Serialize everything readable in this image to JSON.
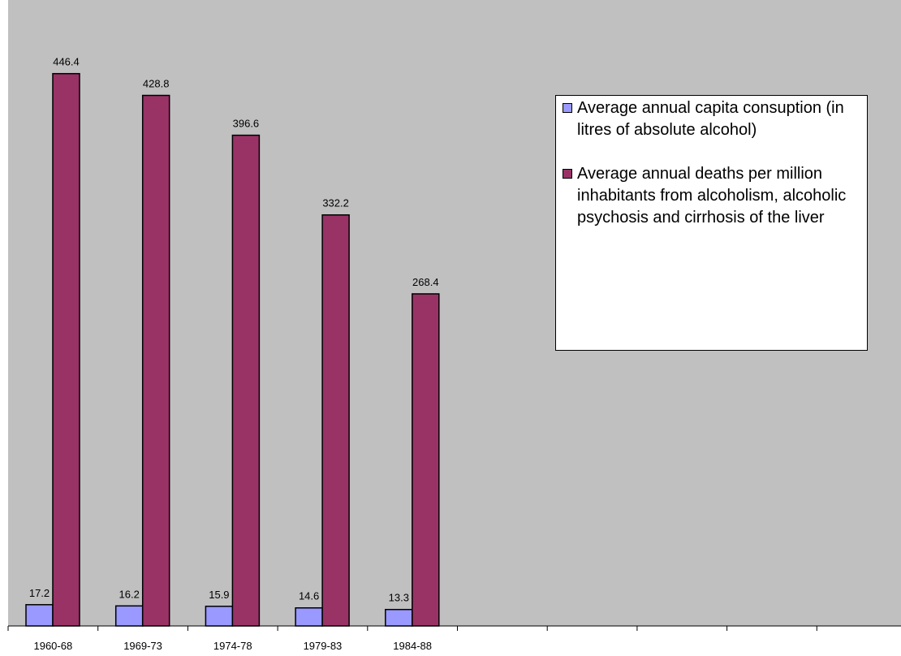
{
  "chart_data": {
    "type": "bar",
    "categories": [
      "1960-68",
      "1969-73",
      "1974-78",
      "1979-83",
      "1984-88",
      null,
      null,
      null,
      null,
      null
    ],
    "series": [
      {
        "name": "Average annual capita consuption (in litres of absolute alcohol)",
        "color": "#9999ff",
        "values": [
          17.2,
          16.2,
          15.9,
          14.6,
          13.3,
          null,
          null,
          null,
          null,
          null
        ]
      },
      {
        "name": "Average annual deaths per million inhabitants from alcoholism, alcoholic psychosis and cirrhosis of the liver",
        "color": "#993366",
        "values": [
          446.4,
          428.8,
          396.6,
          332.2,
          268.4,
          null,
          null,
          null,
          null,
          null
        ]
      }
    ],
    "ylim": [
      0,
      500
    ],
    "legend": "right",
    "background": "#c0c0c0"
  }
}
